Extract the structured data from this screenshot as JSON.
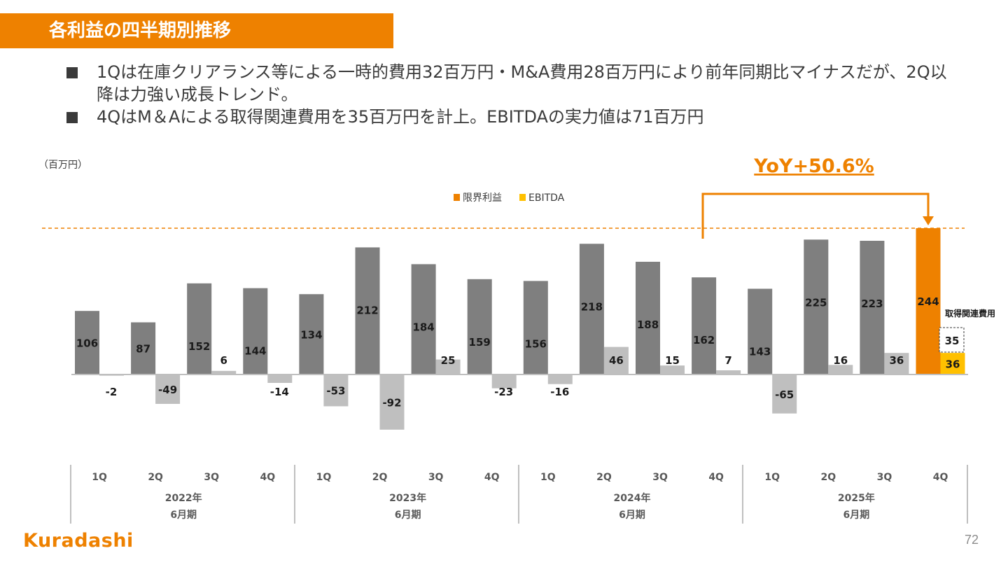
{
  "slide": {
    "title": "各利益の四半期別推移",
    "bullets": [
      "1Qは在庫クリアランス等による一時的費用32百万円・M&A費用28百万円により前年同期比マイナスだが、2Q以降は力強い成長トレンド。",
      "4QはM＆Aによる取得関連費用を35百万円を計上。EBITDAの実力値は71百万円"
    ],
    "logo": "Kuradashi",
    "page_number": "72"
  },
  "colors": {
    "accent": "#ee8100",
    "marginal_profit_bar": "#7f7f7f",
    "ebitda_bar": "#bfbfbf",
    "highlight_marginal": "#ee8100",
    "highlight_ebitda": "#ffc000"
  },
  "chart_data": {
    "type": "bar",
    "unit_label": "（百万円）",
    "legend_position": "top-center",
    "quarters": [
      "1Q",
      "2Q",
      "3Q",
      "4Q",
      "1Q",
      "2Q",
      "3Q",
      "4Q",
      "1Q",
      "2Q",
      "3Q",
      "4Q",
      "1Q",
      "2Q",
      "3Q",
      "4Q"
    ],
    "fiscal_years": [
      {
        "year": "2022年",
        "period": "6月期"
      },
      {
        "year": "2023年",
        "period": "6月期"
      },
      {
        "year": "2024年",
        "period": "6月期"
      },
      {
        "year": "2025年",
        "period": "6月期"
      }
    ],
    "series": [
      {
        "name": "限界利益",
        "values": [
          106,
          87,
          152,
          144,
          134,
          212,
          184,
          159,
          156,
          218,
          188,
          162,
          143,
          225,
          223,
          244
        ]
      },
      {
        "name": "EBITDA",
        "values": [
          -2,
          -49,
          6,
          -14,
          -53,
          -92,
          25,
          -23,
          -16,
          46,
          15,
          7,
          -65,
          16,
          36,
          36
        ]
      }
    ],
    "acquisition_cost": {
      "label": "取得関連費用",
      "value": 35
    },
    "yoy": {
      "label": "YoY+50.6%",
      "from_index": 11,
      "to_index": 15
    },
    "ylim": [
      -100,
      260
    ],
    "grid": false
  }
}
